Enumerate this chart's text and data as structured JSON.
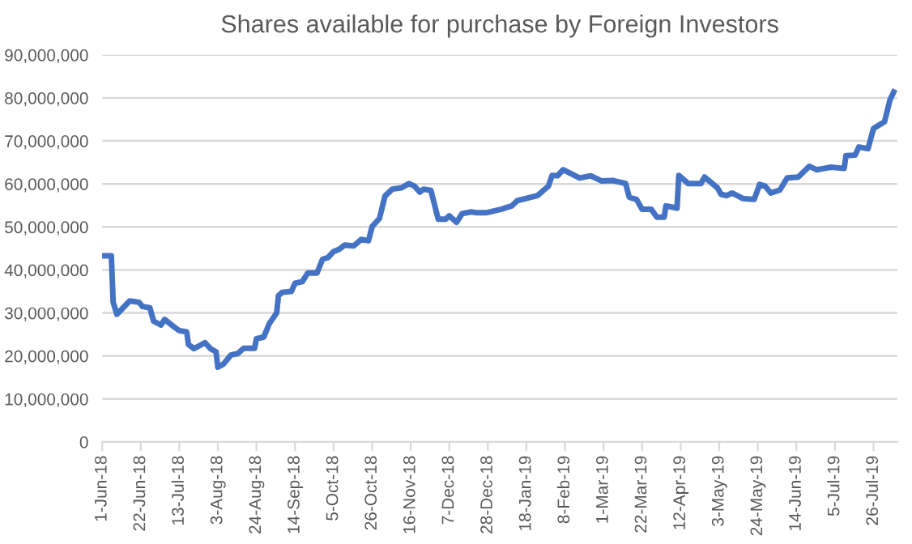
{
  "chart_data": {
    "type": "line",
    "title": "Shares available for purchase by Foreign Investors",
    "x": [
      "2018-06-01",
      "2018-06-06",
      "2018-06-07",
      "2018-06-09",
      "2018-06-16",
      "2018-06-21",
      "2018-06-23",
      "2018-06-27",
      "2018-06-29",
      "2018-07-03",
      "2018-07-05",
      "2018-07-11",
      "2018-07-13",
      "2018-07-17",
      "2018-07-18",
      "2018-07-21",
      "2018-07-27",
      "2018-07-30",
      "2018-08-02",
      "2018-08-03",
      "2018-08-06",
      "2018-08-10",
      "2018-08-14",
      "2018-08-17",
      "2018-08-23",
      "2018-08-24",
      "2018-08-28",
      "2018-08-31",
      "2018-09-04",
      "2018-09-05",
      "2018-09-07",
      "2018-09-12",
      "2018-09-14",
      "2018-09-18",
      "2018-09-21",
      "2018-09-26",
      "2018-09-29",
      "2018-10-02",
      "2018-10-05",
      "2018-10-08",
      "2018-10-11",
      "2018-10-16",
      "2018-10-20",
      "2018-10-24",
      "2018-10-26",
      "2018-10-30",
      "2018-11-02",
      "2018-11-06",
      "2018-11-11",
      "2018-11-15",
      "2018-11-18",
      "2018-11-21",
      "2018-11-23",
      "2018-11-27",
      "2018-12-01",
      "2018-12-05",
      "2018-12-07",
      "2018-12-11",
      "2018-12-14",
      "2018-12-19",
      "2018-12-22",
      "2018-12-27",
      "2019-01-04",
      "2019-01-10",
      "2019-01-13",
      "2019-01-24",
      "2019-01-30",
      "2019-02-01",
      "2019-02-04",
      "2019-02-07",
      "2019-02-16",
      "2019-02-22",
      "2019-02-28",
      "2019-03-06",
      "2019-03-13",
      "2019-03-15",
      "2019-03-19",
      "2019-03-22",
      "2019-03-27",
      "2019-03-30",
      "2019-04-03",
      "2019-04-04",
      "2019-04-10",
      "2019-04-11",
      "2019-04-16",
      "2019-04-23",
      "2019-04-25",
      "2019-05-02",
      "2019-05-04",
      "2019-05-07",
      "2019-05-10",
      "2019-05-16",
      "2019-05-22",
      "2019-05-25",
      "2019-05-28",
      "2019-05-31",
      "2019-06-05",
      "2019-06-09",
      "2019-06-15",
      "2019-06-21",
      "2019-06-25",
      "2019-07-03",
      "2019-07-10",
      "2019-07-11",
      "2019-07-16",
      "2019-07-18",
      "2019-07-23",
      "2019-07-26",
      "2019-08-01",
      "2019-08-04",
      "2019-08-06"
    ],
    "series": [
      {
        "color": "#4472c4",
        "values": [
          43300000,
          43300000,
          32500000,
          29700000,
          32800000,
          32500000,
          31500000,
          31200000,
          28100000,
          27200000,
          28500000,
          26500000,
          25900000,
          25600000,
          22700000,
          21700000,
          23100000,
          21700000,
          21000000,
          17400000,
          18100000,
          20200000,
          20600000,
          21800000,
          21800000,
          24000000,
          24400000,
          27500000,
          30000000,
          34000000,
          34800000,
          35000000,
          36900000,
          37300000,
          39300000,
          39300000,
          42500000,
          42900000,
          44300000,
          44800000,
          45800000,
          45600000,
          47100000,
          46800000,
          50100000,
          52000000,
          57200000,
          58800000,
          59100000,
          60100000,
          59500000,
          58100000,
          58800000,
          58500000,
          51800000,
          51800000,
          52600000,
          51100000,
          53100000,
          53500000,
          53300000,
          53300000,
          54100000,
          54900000,
          56100000,
          57300000,
          59500000,
          62000000,
          61900000,
          63300000,
          61400000,
          61900000,
          60700000,
          60800000,
          60100000,
          56900000,
          56400000,
          54100000,
          54100000,
          52300000,
          52300000,
          54900000,
          54400000,
          62000000,
          60100000,
          60100000,
          61600000,
          59100000,
          57600000,
          57300000,
          57900000,
          56600000,
          56400000,
          59900000,
          59500000,
          57900000,
          58600000,
          61400000,
          61600000,
          64100000,
          63300000,
          63900000,
          63600000,
          66600000,
          66700000,
          68600000,
          68200000,
          72900000,
          74500000,
          79600000,
          81400000
        ]
      }
    ],
    "xlim": [
      "2018-06-01",
      "2019-08-08"
    ],
    "xticks": [
      {
        "value": "2018-06-01",
        "label": "1-Jun-18"
      },
      {
        "value": "2018-06-22",
        "label": "22-Jun-18"
      },
      {
        "value": "2018-07-13",
        "label": "13-Jul-18"
      },
      {
        "value": "2018-08-03",
        "label": "3-Aug-18"
      },
      {
        "value": "2018-08-24",
        "label": "24-Aug-18"
      },
      {
        "value": "2018-09-14",
        "label": "14-Sep-18"
      },
      {
        "value": "2018-10-05",
        "label": "5-Oct-18"
      },
      {
        "value": "2018-10-26",
        "label": "26-Oct-18"
      },
      {
        "value": "2018-11-16",
        "label": "16-Nov-18"
      },
      {
        "value": "2018-12-07",
        "label": "7-Dec-18"
      },
      {
        "value": "2018-12-28",
        "label": "28-Dec-18"
      },
      {
        "value": "2019-01-18",
        "label": "18-Jan-19"
      },
      {
        "value": "2019-02-08",
        "label": "8-Feb-19"
      },
      {
        "value": "2019-03-01",
        "label": "1-Mar-19"
      },
      {
        "value": "2019-03-22",
        "label": "22-Mar-19"
      },
      {
        "value": "2019-04-12",
        "label": "12-Apr-19"
      },
      {
        "value": "2019-05-03",
        "label": "3-May-19"
      },
      {
        "value": "2019-05-24",
        "label": "24-May-19"
      },
      {
        "value": "2019-06-14",
        "label": "14-Jun-19"
      },
      {
        "value": "2019-07-05",
        "label": "5-Jul-19"
      },
      {
        "value": "2019-07-26",
        "label": "26-Jul-19"
      }
    ],
    "ylim": [
      0,
      90000000
    ],
    "yticks": [
      0,
      {
        "value": 10000000,
        "label": "10,000,000"
      },
      {
        "value": 20000000,
        "label": "20,000,000"
      },
      {
        "value": 30000000,
        "label": "30,000,000"
      },
      {
        "value": 40000000,
        "label": "40,000,000"
      },
      {
        "value": 50000000,
        "label": "50,000,000"
      },
      {
        "value": 60000000,
        "label": "60,000,000"
      },
      {
        "value": 70000000,
        "label": "70,000,000"
      },
      {
        "value": 80000000,
        "label": "80,000,000"
      },
      {
        "value": 90000000,
        "label": "90,000,000"
      }
    ],
    "grid": "y",
    "legend": false,
    "marker": "none",
    "line_style": "solid"
  }
}
